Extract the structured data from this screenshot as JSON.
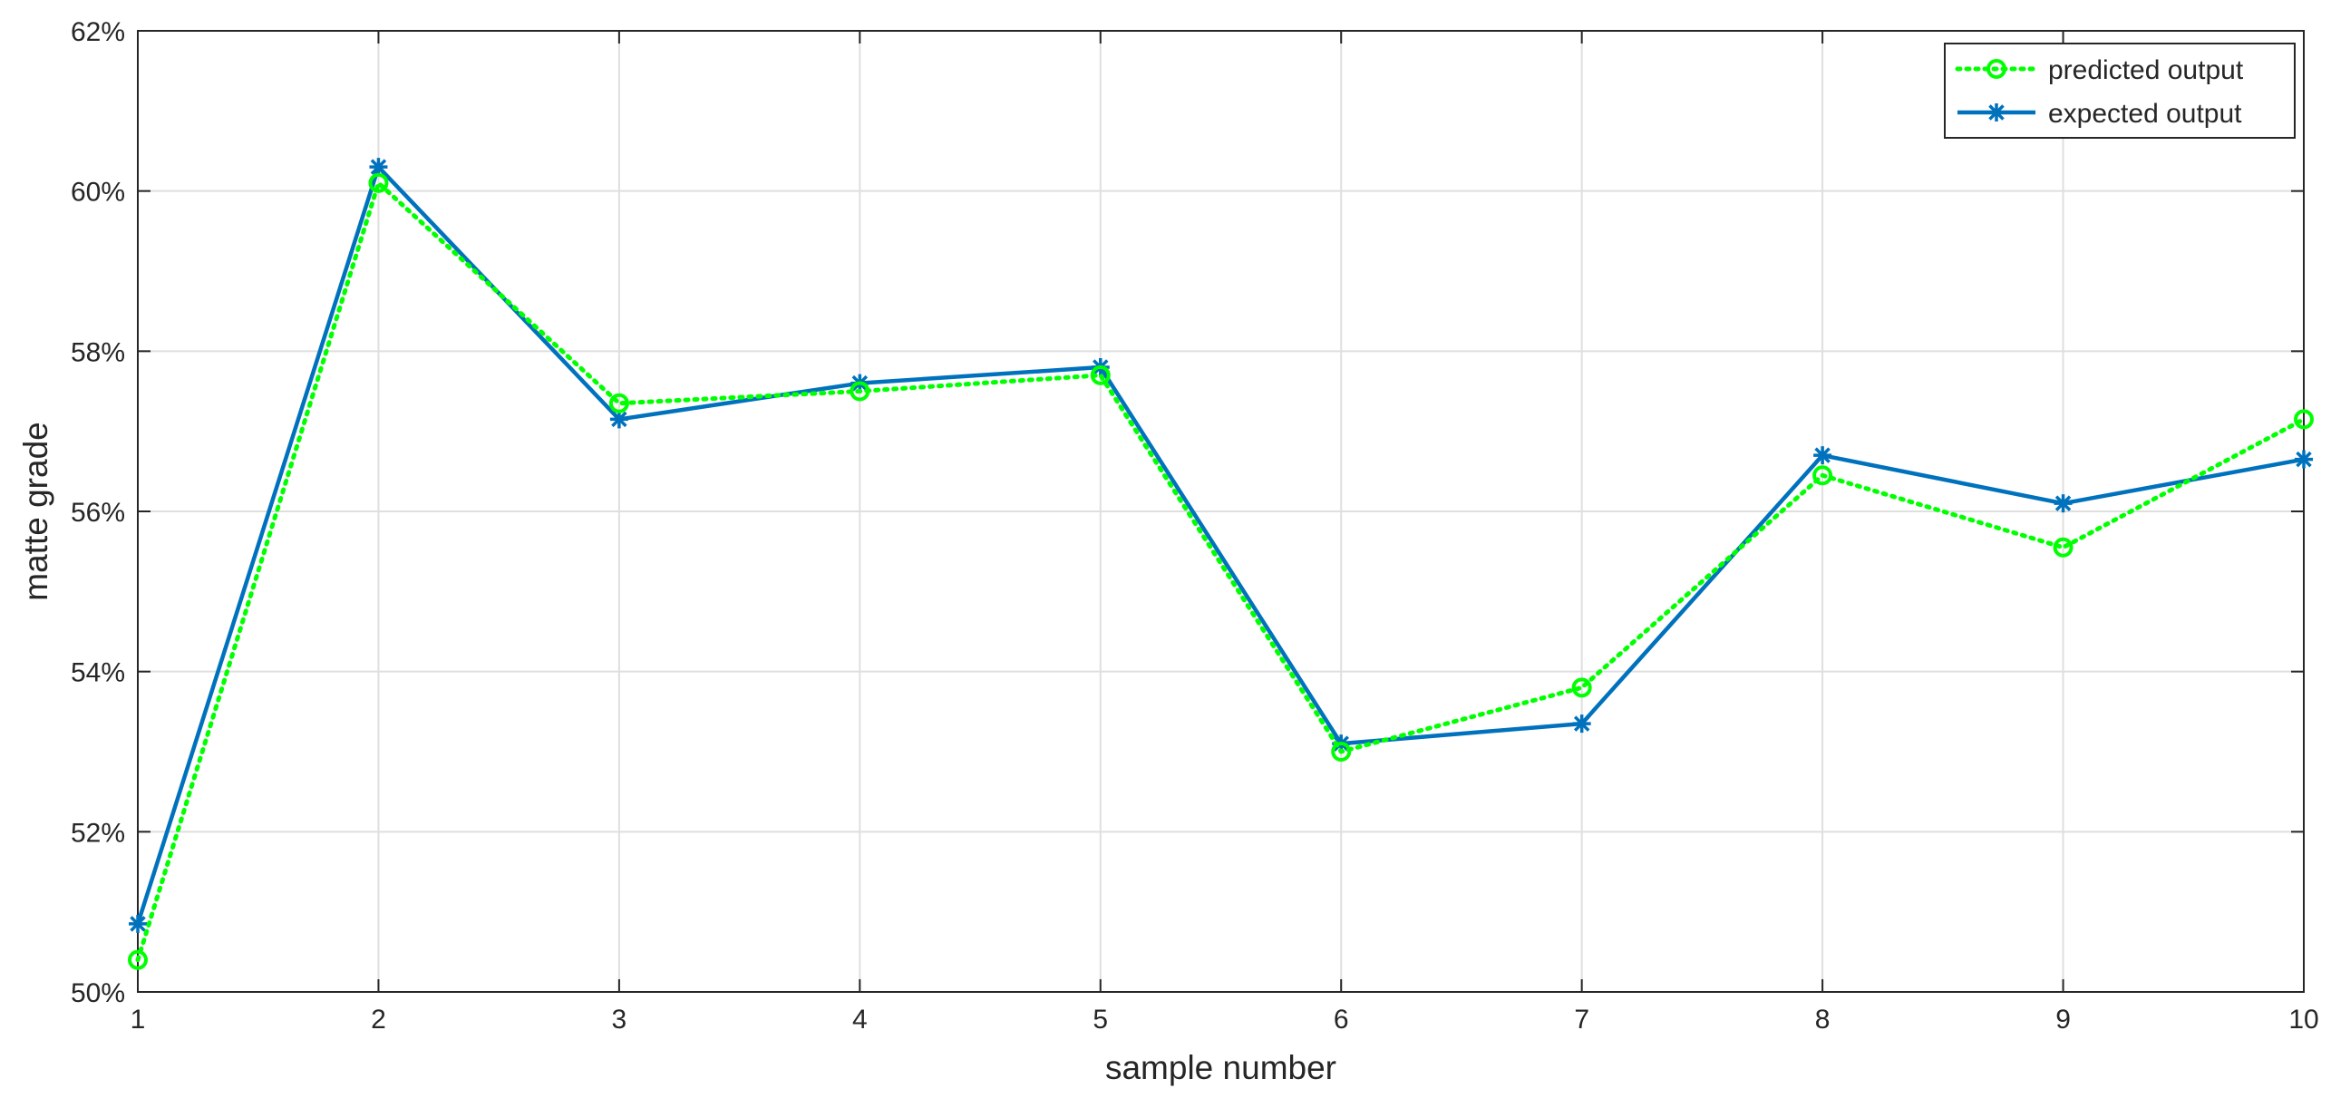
{
  "chart_data": {
    "type": "line",
    "title": "",
    "xlabel": "sample number",
    "ylabel": "matte grade",
    "xlim": [
      1,
      10
    ],
    "ylim": [
      50,
      62
    ],
    "x_ticks": [
      1,
      2,
      3,
      4,
      5,
      6,
      7,
      8,
      9,
      10
    ],
    "x_tick_labels": [
      "1",
      "2",
      "3",
      "4",
      "5",
      "6",
      "7",
      "8",
      "9",
      "10"
    ],
    "y_ticks": [
      50,
      52,
      54,
      56,
      58,
      60,
      62
    ],
    "y_tick_labels": [
      "50%",
      "52%",
      "54%",
      "56%",
      "58%",
      "60%",
      "62%"
    ],
    "grid": true,
    "legend_position": "top-right",
    "x": [
      1,
      2,
      3,
      4,
      5,
      6,
      7,
      8,
      9,
      10
    ],
    "series": [
      {
        "name": "predicted output",
        "color": "#00ff00",
        "line_style": "dotted",
        "marker": "circle",
        "values": [
          50.4,
          60.1,
          57.35,
          57.5,
          57.7,
          53.0,
          53.8,
          56.45,
          55.55,
          57.15
        ]
      },
      {
        "name": "expected output",
        "color": "#0072bd",
        "line_style": "solid",
        "marker": "asterisk",
        "values": [
          50.85,
          60.3,
          57.15,
          57.6,
          57.8,
          53.1,
          53.35,
          56.7,
          56.1,
          56.65
        ]
      }
    ]
  }
}
